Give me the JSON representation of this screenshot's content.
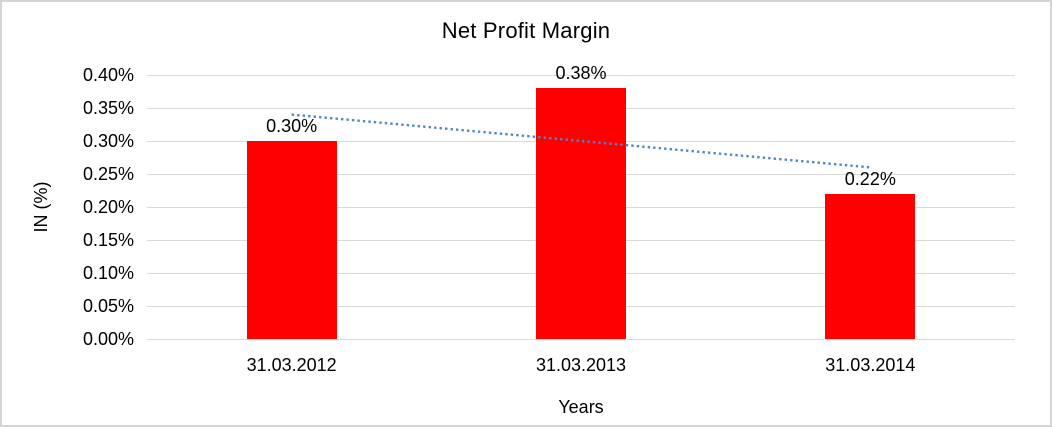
{
  "chart_data": {
    "type": "bar",
    "title": "Net Profit Margin",
    "xlabel": "Years",
    "ylabel": "IN (%)",
    "categories": [
      "31.03.2012",
      "31.03.2013",
      "31.03.2014"
    ],
    "values": [
      0.3,
      0.38,
      0.22
    ],
    "data_labels": [
      "0.30%",
      "0.38%",
      "0.22%"
    ],
    "y_ticks": [
      "0.40%",
      "0.35%",
      "0.30%",
      "0.25%",
      "0.20%",
      "0.15%",
      "0.10%",
      "0.05%",
      "0.00%"
    ],
    "ylim": [
      0,
      0.4
    ],
    "grid": "horizontal",
    "legend": "none",
    "bar_color": "#ff0000",
    "gridline_color": "#d9d9d9",
    "trendline": {
      "type": "linear",
      "style": "dotted",
      "color": "#4e86c8",
      "start_category": "31.03.2012",
      "start_value": 0.34,
      "end_category": "31.03.2014",
      "end_value": 0.26
    }
  }
}
